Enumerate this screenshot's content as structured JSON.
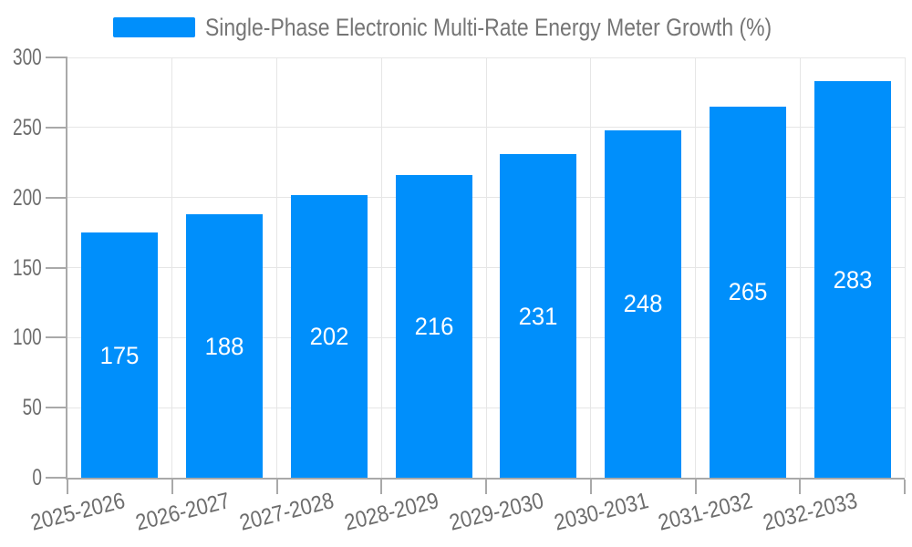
{
  "chart_data": {
    "type": "bar",
    "title": "Single-Phase Electronic Multi-Rate Energy Meter Growth (%)",
    "categories": [
      "2025-2026",
      "2026-2027",
      "2027-2028",
      "2028-2029",
      "2029-2030",
      "2030-2031",
      "2031-2032",
      "2032-2033"
    ],
    "values": [
      175,
      188,
      202,
      216,
      231,
      248,
      265,
      283
    ],
    "series": [
      {
        "name": "Single-Phase Electronic Multi-Rate Energy Meter Growth (%)",
        "values": [
          175,
          188,
          202,
          216,
          231,
          248,
          265,
          283
        ]
      }
    ],
    "xlabel": "",
    "ylabel": "",
    "ylim": [
      0,
      300
    ],
    "yticks": [
      0,
      50,
      100,
      150,
      200,
      250,
      300
    ],
    "grid": true,
    "legend_position": "top",
    "xlabel_rotation_deg": -14
  },
  "colors": {
    "bar": "#008FFB",
    "bar_value_label": "#ffffff",
    "axis_label": "#6d6d6d",
    "title_text": "#757575",
    "gridline": "#e6e6e6",
    "axis_line": "#a9a9a9",
    "background": "#ffffff"
  }
}
